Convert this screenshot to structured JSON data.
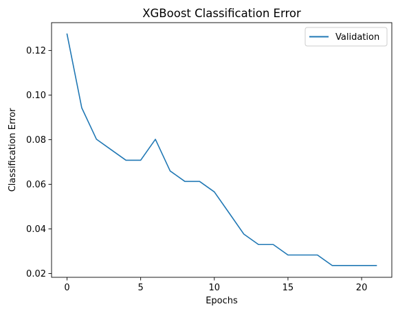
{
  "chart_data": {
    "type": "line",
    "title": "XGBoost Classification Error",
    "xlabel": "Epochs",
    "ylabel": "Classification Error",
    "xlim": [
      -1.05,
      22.05
    ],
    "ylim": [
      0.0183,
      0.1325
    ],
    "xticks": [
      0,
      5,
      10,
      15,
      20
    ],
    "xtick_labels": [
      "0",
      "5",
      "10",
      "15",
      "20"
    ],
    "yticks": [
      0.02,
      0.04,
      0.06,
      0.08,
      0.1,
      0.12
    ],
    "ytick_labels": [
      "0.02",
      "0.04",
      "0.06",
      "0.08",
      "0.10",
      "0.12"
    ],
    "grid": false,
    "legend_position": "top-right",
    "series": [
      {
        "name": "Validation",
        "color": "#1f77b4",
        "x": [
          0,
          1,
          2,
          3,
          4,
          5,
          6,
          7,
          8,
          9,
          10,
          11,
          12,
          13,
          14,
          15,
          16,
          17,
          18,
          19,
          20,
          21
        ],
        "y": [
          0.1274,
          0.0943,
          0.0802,
          0.0755,
          0.0708,
          0.0708,
          0.0802,
          0.066,
          0.0613,
          0.0613,
          0.0566,
          0.0472,
          0.0377,
          0.033,
          0.033,
          0.0283,
          0.0283,
          0.0283,
          0.0236,
          0.0236,
          0.0236,
          0.0236
        ]
      }
    ]
  }
}
